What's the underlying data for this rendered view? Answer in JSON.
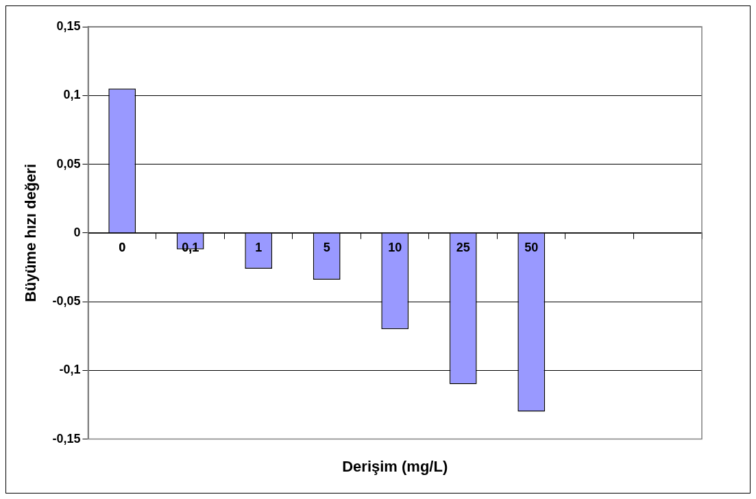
{
  "chart_data": {
    "type": "bar",
    "xlabel": "Derişim (mg/L)",
    "ylabel": "Büyüme hızı değeri",
    "categories": [
      "0",
      "0,1",
      "1",
      "5",
      "10",
      "25",
      "50",
      null,
      null
    ],
    "values": [
      0.105,
      -0.012,
      -0.026,
      -0.034,
      -0.07,
      -0.11,
      -0.13,
      null,
      null
    ],
    "color": "#9999ff",
    "ylim": [
      -0.15,
      0.15
    ],
    "yticks": [
      {
        "value": -0.15,
        "label": "-0,15"
      },
      {
        "value": -0.1,
        "label": "-0,1"
      },
      {
        "value": -0.05,
        "label": "-0,05"
      },
      {
        "value": 0,
        "label": "0"
      },
      {
        "value": 0.05,
        "label": "0,05"
      },
      {
        "value": 0.1,
        "label": "0,1"
      },
      {
        "value": 0.15,
        "label": "0,15"
      }
    ],
    "grid": "y",
    "legend": false
  }
}
